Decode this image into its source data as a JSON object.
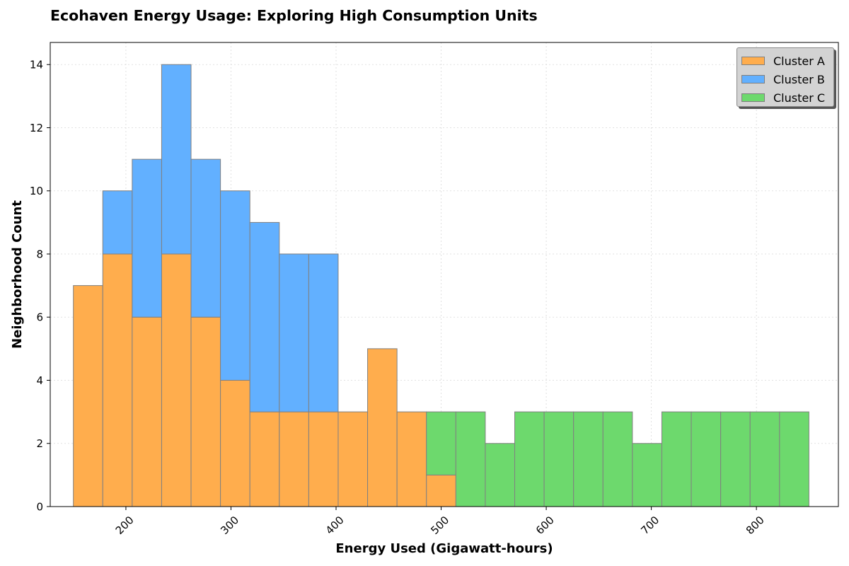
{
  "chart_data": {
    "type": "bar",
    "stacked": true,
    "title": "Ecohaven Energy Usage: Exploring High Consumption Units",
    "xlabel": "Energy Used (Gigawatt-hours)",
    "ylabel": "Neighborhood Count",
    "xlim": [
      128,
      878
    ],
    "ylim": [
      0,
      14.7
    ],
    "xticks": [
      200,
      300,
      400,
      500,
      600,
      700,
      800
    ],
    "yticks": [
      0,
      2,
      4,
      6,
      8,
      10,
      12,
      14
    ],
    "grid": true,
    "legend_position": "top-right",
    "bin_edges": [
      150,
      178,
      206,
      234,
      262,
      290,
      318,
      346,
      374,
      402,
      430,
      458,
      486,
      514,
      542,
      570,
      598,
      626,
      654,
      682,
      710,
      738,
      766,
      794,
      822,
      850
    ],
    "series": [
      {
        "name": "Cluster A",
        "color": "#ffad4d",
        "values": [
          7,
          8,
          6,
          8,
          6,
          4,
          3,
          3,
          3,
          3,
          5,
          3,
          1,
          0,
          0,
          0,
          0,
          0,
          0,
          0,
          0,
          0,
          0,
          0,
          0
        ]
      },
      {
        "name": "Cluster B",
        "color": "#62b0ff",
        "values": [
          0,
          2,
          5,
          6,
          5,
          6,
          6,
          5,
          5,
          0,
          0,
          0,
          0,
          0,
          0,
          0,
          0,
          0,
          0,
          0,
          0,
          0,
          0,
          0,
          0
        ]
      },
      {
        "name": "Cluster C",
        "color": "#6dd96d",
        "values": [
          0,
          0,
          0,
          0,
          0,
          0,
          0,
          0,
          0,
          0,
          0,
          0,
          2,
          3,
          2,
          3,
          3,
          3,
          3,
          2,
          3,
          3,
          3,
          3,
          3
        ]
      }
    ]
  }
}
